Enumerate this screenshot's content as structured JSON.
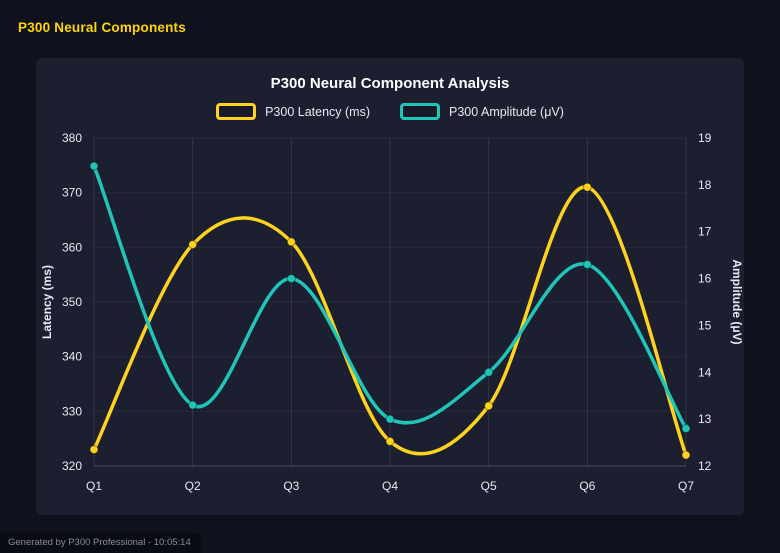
{
  "page": {
    "title": "P300 Neural Components",
    "footer": "Generated by P300 Professional - 10:05:14"
  },
  "colors": {
    "accent_yellow": "#ffd400",
    "latency_line": "#ffd21e",
    "amplitude_line": "#20c5ba",
    "page_bg": "#0f111c",
    "card_bg": "#1c1f30",
    "tick_text": "#e8eaf2"
  },
  "chart_data": {
    "type": "line",
    "title": "P300 Neural Component Analysis",
    "categories": [
      "Q1",
      "Q2",
      "Q3",
      "Q4",
      "Q5",
      "Q6",
      "Q7"
    ],
    "series": [
      {
        "name": "P300 Latency (ms)",
        "axis": "left",
        "color": "#ffd21e",
        "values": [
          323,
          360.5,
          361,
          324.5,
          331,
          371,
          322
        ]
      },
      {
        "name": "P300 Amplitude (μV)",
        "axis": "right",
        "color": "#20c5ba",
        "values": [
          18.4,
          13.3,
          16.0,
          13.0,
          14.0,
          16.3,
          12.8
        ]
      }
    ],
    "left_axis": {
      "label": "Latency (ms)",
      "min": 320,
      "max": 380,
      "step": 10
    },
    "right_axis": {
      "label": "Amplitude (μV)",
      "min": 12,
      "max": 19,
      "step": 1
    },
    "legend_position": "top",
    "grid": true,
    "smooth": true
  }
}
